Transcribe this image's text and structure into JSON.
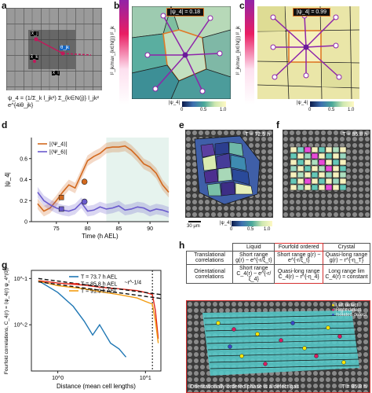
{
  "panel_labels": {
    "a": "a",
    "b": "b",
    "c": "c",
    "d": "d",
    "e": "e",
    "f": "f",
    "g": "g",
    "h": "h"
  },
  "panel_a": {
    "labels": [
      "x̂_j",
      "x̂_k",
      "x̂_i",
      "θ_jk"
    ],
    "formula": "ψ_4 = (1/Σ_k l_jk²) Σ_{k∈N(j)} l_jk² e^{4iθ_jk}"
  },
  "panel_b": {
    "value_box": "|ψ_4| = 0.18",
    "ylabel": "l²_jk/max_{k∈N(j)} l²_jk",
    "cbar_label": "|ψ_4|",
    "cbar_ticks": [
      "0",
      "0.5",
      "1.0"
    ]
  },
  "panel_c": {
    "value_box": "|ψ_4| = 0.99",
    "ylabel": "l²_jk/max_{k∈N(j)} l²_jk",
    "cbar_label": "|ψ_4|",
    "cbar_ticks": [
      "0",
      "0.5",
      "1.0"
    ]
  },
  "panel_d": {
    "ylabel": "|ψ_4|",
    "xlabel": "Time (h AEL)",
    "legend": [
      "|⟨Ψ_4⟩|",
      "|⟨Ψ_6⟩|"
    ],
    "colors": {
      "psi4": "#d2691e",
      "psi6": "#6a5acd",
      "shade": "#e6f3ee"
    }
  },
  "panel_e": {
    "time": "T = 72.5 h",
    "scalebar": "30 μm",
    "cbar_label": "|ψ_4|",
    "cbar_ticks": [
      "0",
      "0.5",
      "1.0"
    ]
  },
  "panel_f": {
    "time": "T = 85.8 h"
  },
  "panel_g": {
    "ylabel": "Fourfold correlations, C_4(r) = ⟨ψ_4(r) ψ_4*(0)⟩",
    "xlabel": "Distance (mean cell lengths)",
    "annotation": "~r^-1/4",
    "legend": [
      "T = 73.7 h AEL",
      "T = 85.8 h AEL",
      "T = 91.9 h AEL"
    ],
    "colors": [
      "#1f77b4",
      "#e3261a",
      "#f39c12"
    ]
  },
  "panel_h": {
    "table": {
      "headers": [
        "",
        "Liquid",
        "Fourfold ordered",
        "Crystal"
      ],
      "rows": [
        [
          "Translational correlations",
          "Short range g(r) ~ e^{-r/ξ_t}",
          "Short range g(r) ~ e^{-r/ξ_t}",
          "Quasi-long range g(r) ~ r^{-η_T}"
        ],
        [
          "Orientational correlations",
          "Short range C_4(r) ~ e^{-r/ξ_4}",
          "Quasi-long range C_4(r) ~ r^{-η_4}",
          "Long range lim C_4(r) = constant"
        ]
      ]
    },
    "legend": [
      "Left defect",
      "Right defect",
      "Isolated defect"
    ],
    "legend_colors": [
      "#ffe600",
      "#d81b60",
      "#3a47c7"
    ],
    "time": "T = 85.8 h",
    "caption": "Orientationally ordered phase is a defect gas"
  },
  "chart_data": [
    {
      "type": "line",
      "panel": "d",
      "xlabel": "Time (h AEL)",
      "ylabel": "|ψ_4|",
      "xlim": [
        71,
        93
      ],
      "ylim": [
        0,
        0.8
      ],
      "yticks": [
        0,
        0.2,
        0.4,
        0.6
      ],
      "xticks": [
        75,
        80,
        85,
        90
      ],
      "shaded_region": [
        83,
        93
      ],
      "series": [
        {
          "name": "|⟨Ψ_4⟩|",
          "x": [
            72,
            73,
            74,
            75,
            76,
            77,
            78,
            79,
            80,
            81,
            82,
            83,
            84,
            85,
            86,
            87,
            88,
            89,
            90,
            91,
            92,
            93
          ],
          "values": [
            0.17,
            0.1,
            0.13,
            0.2,
            0.28,
            0.35,
            0.32,
            0.45,
            0.58,
            0.62,
            0.65,
            0.7,
            0.71,
            0.71,
            0.72,
            0.68,
            0.62,
            0.55,
            0.52,
            0.46,
            0.35,
            0.28
          ]
        },
        {
          "name": "|⟨Ψ_6⟩|",
          "x": [
            72,
            73,
            74,
            75,
            76,
            77,
            78,
            79,
            80,
            81,
            82,
            83,
            84,
            85,
            86,
            87,
            88,
            89,
            90,
            91,
            92,
            93
          ],
          "values": [
            0.28,
            0.2,
            0.16,
            0.13,
            0.11,
            0.1,
            0.12,
            0.18,
            0.1,
            0.11,
            0.14,
            0.12,
            0.13,
            0.15,
            0.11,
            0.12,
            0.14,
            0.13,
            0.1,
            0.12,
            0.11,
            0.09
          ]
        }
      ],
      "markers": [
        {
          "series": "|⟨Ψ_4⟩|",
          "x": 75.8,
          "y": 0.23,
          "shape": "square"
        },
        {
          "series": "|⟨Ψ_4⟩|",
          "x": 79.5,
          "y": 0.38,
          "shape": "circle"
        },
        {
          "series": "|⟨Ψ_6⟩|",
          "x": 75.8,
          "y": 0.12,
          "shape": "square"
        },
        {
          "series": "|⟨Ψ_6⟩|",
          "x": 79.5,
          "y": 0.19,
          "shape": "circle"
        }
      ]
    },
    {
      "type": "line",
      "panel": "g",
      "xlabel": "Distance (mean cell lengths)",
      "ylabel": "Fourfold correlations, C_4(r) = ⟨ψ_4(r) ψ_4*(0)⟩",
      "xscale": "log",
      "yscale": "log",
      "xticks": [
        "10^0",
        "10^1"
      ],
      "yticks": [
        "10^-2",
        "10^-1"
      ],
      "vline_x": 12,
      "series": [
        {
          "name": "T = 73.7 h AEL",
          "x": [
            0.6,
            1,
            1.5,
            2,
            2.5,
            3,
            4,
            5,
            6
          ],
          "values": [
            0.09,
            0.05,
            0.025,
            0.012,
            0.006,
            0.01,
            0.004,
            0.003,
            0.002
          ]
        },
        {
          "name": "T = 85.8 h AEL",
          "x": [
            0.6,
            1,
            2,
            3,
            5,
            8,
            10,
            12,
            13,
            14
          ],
          "values": [
            0.09,
            0.08,
            0.072,
            0.065,
            0.06,
            0.055,
            0.05,
            0.045,
            0.02,
            0.005
          ]
        },
        {
          "name": "T = 91.9 h AEL",
          "x": [
            0.6,
            1,
            2,
            3,
            5,
            8,
            10,
            12,
            13,
            14
          ],
          "values": [
            0.088,
            0.07,
            0.06,
            0.052,
            0.045,
            0.038,
            0.032,
            0.028,
            0.012,
            0.004
          ]
        }
      ],
      "annotation": "~r^-1/4"
    }
  ]
}
